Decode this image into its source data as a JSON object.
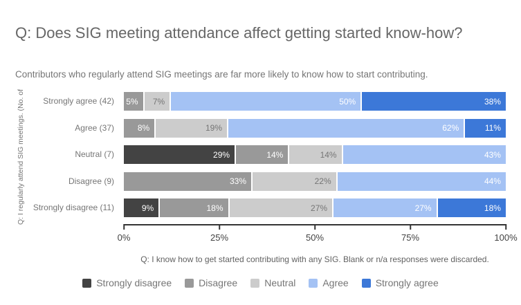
{
  "page": {
    "background": "#ffffff"
  },
  "chart": {
    "title": "Q: Does SIG meeting attendance affect getting started know-how?",
    "subtitle": "Contributors who regularly attend SIG meetings are far more likely to know how to start contributing.",
    "y_axis_label": "Q: I regularly attend SIG meetings. (No. of",
    "footnote": "Q: I know how to get started contributing with any SIG. Blank or n/a responses were discarded."
  },
  "chart_data": {
    "type": "bar",
    "variant": "horizontal-stacked-100pct",
    "title": "Q: Does SIG meeting attendance affect getting started know-how?",
    "subtitle": "Contributors who regularly attend SIG meetings are far more likely to know how to start contributing.",
    "ylabel": "Q: I regularly attend SIG meetings. (No. of",
    "xlabel": "",
    "footnote": "Q: I know how to get started contributing with any SIG. Blank or n/a responses were discarded.",
    "categories": [
      "Strongly agree (42)",
      "Agree (37)",
      "Neutral (7)",
      "Disagree (9)",
      "Strongly disagree (11)"
    ],
    "series": [
      {
        "name": "Strongly disagree",
        "color": "#434343",
        "label_color": "#ffffff",
        "values": [
          null,
          null,
          29,
          null,
          9
        ]
      },
      {
        "name": "Disagree",
        "color": "#999999",
        "label_color": "#ffffff",
        "values": [
          5,
          8,
          14,
          33,
          18
        ]
      },
      {
        "name": "Neutral",
        "color": "#cccccc",
        "label_color": "#757575",
        "values": [
          7,
          19,
          14,
          22,
          27
        ]
      },
      {
        "name": "Agree",
        "color": "#a4c2f4",
        "label_color": "#ffffff",
        "values": [
          50,
          62,
          43,
          44,
          27
        ]
      },
      {
        "name": "Strongly agree",
        "color": "#3c78d8",
        "label_color": "#ffffff",
        "values": [
          38,
          11,
          null,
          null,
          18
        ]
      }
    ],
    "value_suffix": "%",
    "xlim": [
      0,
      100
    ],
    "x_ticks": [
      "0%",
      "25%",
      "50%",
      "75%",
      "100%"
    ],
    "x_tick_positions": [
      0,
      25,
      50,
      75,
      100
    ],
    "grid": false,
    "legend_position": "bottom"
  }
}
